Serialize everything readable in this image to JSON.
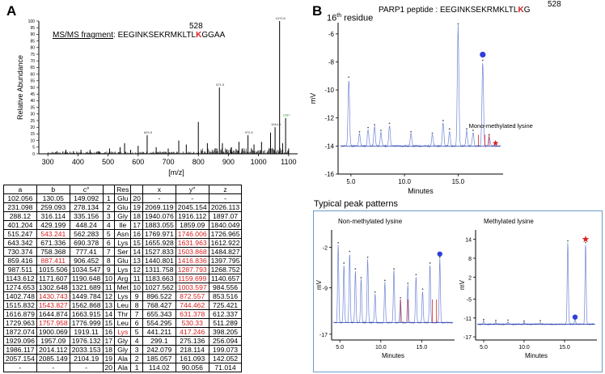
{
  "panels": {
    "a": "A",
    "b": "B"
  },
  "spectrum": {
    "fragment_label": "MS/MS fragment",
    "fragment_pre": ": EEGINKSEKRMKLTL",
    "fragment_k": "K",
    "fragment_post": "GGAA",
    "site_number": "528",
    "ylabel": "Relative Abundance",
    "xlabel": "[m/z]",
    "xticks": [
      "300",
      "400",
      "500",
      "600",
      "700",
      "800",
      "900",
      "1000",
      "1100"
    ],
    "yticks": [
      "0",
      "5",
      "10",
      "15",
      "20",
      "25",
      "30",
      "35",
      "40",
      "45",
      "50",
      "55",
      "60",
      "65",
      "70",
      "75",
      "80",
      "85",
      "90",
      "95",
      "100"
    ],
    "xrange": [
      270,
      1130
    ],
    "peaks": [
      [
        330,
        2
      ],
      [
        360,
        3
      ],
      [
        385,
        2
      ],
      [
        410,
        3
      ],
      [
        440,
        3
      ],
      [
        470,
        2
      ],
      [
        505,
        4
      ],
      [
        540,
        5
      ],
      [
        555,
        8
      ],
      [
        575,
        3
      ],
      [
        600,
        6
      ],
      [
        630,
        14
      ],
      [
        660,
        5
      ],
      [
        700,
        4
      ],
      [
        735,
        10
      ],
      [
        760,
        7
      ],
      [
        800,
        24
      ],
      [
        830,
        8
      ],
      [
        870,
        50
      ],
      [
        880,
        8
      ],
      [
        910,
        5
      ],
      [
        935,
        9
      ],
      [
        965,
        14
      ],
      [
        985,
        7
      ],
      [
        1010,
        9
      ],
      [
        1040,
        16
      ],
      [
        1055,
        20
      ],
      [
        1070,
        100
      ],
      [
        1080,
        8
      ],
      [
        1090,
        27
      ],
      [
        1100,
        4
      ]
    ],
    "peak_labels": [
      {
        "mz": 1070,
        "text": "1070.6",
        "color": "#333333"
      },
      {
        "mz": 870,
        "text": "871.5",
        "color": "#333333"
      },
      {
        "mz": 1090,
        "text": "1087",
        "color": "#2e9a2e"
      },
      {
        "mz": 630,
        "text": "629.5",
        "color": "#333333"
      },
      {
        "mz": 1055,
        "text": "1044.6",
        "color": "#333333"
      },
      {
        "mz": 965,
        "text": "972.5",
        "color": "#333333"
      }
    ]
  },
  "table": {
    "headers": [
      "a",
      "b",
      "c°",
      "",
      "Res",
      "",
      "x",
      "y°",
      "z"
    ],
    "rows": [
      [
        "102.056",
        "130.05",
        "149.092",
        "1",
        "Glu",
        "20",
        "-",
        "-",
        "-"
      ],
      [
        "231.098",
        "259.093",
        "278.134",
        "2",
        "Glu",
        "19",
        "2069.119",
        "2045.154",
        "2026.113"
      ],
      [
        "288.12",
        "316.114",
        "335.156",
        "3",
        "Gly",
        "18",
        "1940.076",
        "1916.112",
        "1897.07"
      ],
      [
        "401.204",
        "429.199",
        "448.24",
        "4",
        "Ile",
        "17",
        "1883.055",
        "1859.09",
        "1840.049"
      ],
      [
        "515.247",
        "543.241",
        "562.283",
        "5",
        "Asn",
        "16",
        "1769.971",
        "1746.006",
        "1726.965"
      ],
      [
        "643.342",
        "671.336",
        "690.378",
        "6",
        "Lys",
        "15",
        "1655.928",
        "1631.963",
        "1612.922"
      ],
      [
        "730.374",
        "758.368",
        "777.41",
        "7",
        "Ser",
        "14",
        "1527.833",
        "1503.868",
        "1484.827"
      ],
      [
        "859.416",
        "887.411",
        "906.452",
        "8",
        "Glu",
        "13",
        "1440.801",
        "1416.836",
        "1397.795"
      ],
      [
        "987.511",
        "1015.506",
        "1034.547",
        "9",
        "Lys",
        "12",
        "1311.758",
        "1287.793",
        "1268.752"
      ],
      [
        "1143.612",
        "1171.607",
        "1190.648",
        "10",
        "Arg",
        "11",
        "1183.663",
        "1159.699",
        "1140.657"
      ],
      [
        "1274.653",
        "1302.648",
        "1321.689",
        "11",
        "Met",
        "10",
        "1027.562",
        "1003.597",
        "984.556"
      ],
      [
        "1402.748",
        "1430.743",
        "1449.784",
        "12",
        "Lys",
        "9",
        "896.522",
        "872.557",
        "853.516"
      ],
      [
        "1515.832",
        "1543.827",
        "1562.868",
        "13",
        "Leu",
        "8",
        "768.427",
        "744.462",
        "725.421"
      ],
      [
        "1616.879",
        "1644.874",
        "1663.915",
        "14",
        "Thr",
        "7",
        "655.343",
        "631.378",
        "612.337"
      ],
      [
        "1729.963",
        "1757.958",
        "1776.999",
        "15",
        "Leu",
        "6",
        "554.295",
        "530.33",
        "511.289"
      ],
      [
        "1872.074",
        "1900.069",
        "1919.11",
        "16",
        "Lys",
        "5",
        "441.211",
        "417.246",
        "398.205"
      ],
      [
        "1929.096",
        "1957.09",
        "1976.132",
        "17",
        "Gly",
        "4",
        "299.1",
        "275.136",
        "256.094"
      ],
      [
        "1986.117",
        "2014.112",
        "2033.153",
        "18",
        "Gly",
        "3",
        "242.079",
        "218.114",
        "199.073"
      ],
      [
        "2057.154",
        "2085.149",
        "2104.19",
        "19",
        "Ala",
        "2",
        "185.057",
        "161.093",
        "142.052"
      ],
      [
        "-",
        "-",
        "-",
        "20",
        "Ala",
        "1",
        "114.02",
        "90.056",
        "71.014"
      ]
    ],
    "red_cells": [
      "4-1",
      "4-7",
      "5-7",
      "6-7",
      "7-1",
      "7-7",
      "8-7",
      "9-7",
      "10-7",
      "11-1",
      "11-7",
      "12-1",
      "12-7",
      "13-7",
      "14-1",
      "14-7",
      "15-4",
      "15-7"
    ]
  },
  "chromatogram": {
    "title_pre": "PARP1 peptide : EEGINKSEKRMKLTL",
    "title_k": "K",
    "title_post": "G",
    "site_number": "528",
    "residue_label_pre": "16",
    "residue_label_sup": "th",
    "residue_label_post": " residue",
    "ylabel": "mV",
    "xlabel": "Minutes",
    "xticks": [
      "5.0",
      "10.0",
      "15.0"
    ],
    "yticks": [
      "-6",
      "-8",
      "-10",
      "-12",
      "-14",
      "-16"
    ],
    "xrange": [
      3.8,
      19.2
    ],
    "yrange": [
      -16,
      -5.2
    ],
    "baseline": -14,
    "peaks": [
      [
        4.8,
        -9.2
      ],
      [
        5.8,
        -13.1
      ],
      [
        6.6,
        -12.8
      ],
      [
        7.2,
        -12.6
      ],
      [
        7.8,
        -13.0
      ],
      [
        8.6,
        -12.5
      ],
      [
        10.6,
        -13.1
      ],
      [
        12.6,
        -13.2
      ],
      [
        13.6,
        -12.3
      ],
      [
        14.2,
        -12.9
      ],
      [
        15.0,
        -5.4
      ],
      [
        15.8,
        -12.9
      ],
      [
        16.4,
        -13.0
      ],
      [
        17.3,
        -8.0
      ],
      [
        17.9,
        -13.3
      ]
    ],
    "annotation": "Mono-methylated lysine",
    "marker_colors": {
      "circle": "#2f3fd9",
      "star": "#e01e1e"
    }
  },
  "patterns": {
    "title": "Typical peak patterns",
    "non_methyl": {
      "title": "Non-methylated lysine",
      "ylabel": "mV",
      "xlabel": "Minutes",
      "xticks": [
        "5.0",
        "10.0",
        "15.0"
      ],
      "yticks": [
        "-2",
        "-9",
        "-17"
      ],
      "xrange": [
        4.0,
        19.0
      ],
      "yrange": [
        -18,
        1
      ],
      "baseline": -15,
      "peaks": [
        [
          4.8,
          -1.5
        ],
        [
          5.5,
          -5
        ],
        [
          6.2,
          -3
        ],
        [
          6.9,
          -6
        ],
        [
          7.6,
          -7.5
        ],
        [
          8.4,
          -4
        ],
        [
          9.3,
          -10
        ],
        [
          10.5,
          -8
        ],
        [
          11.6,
          -6
        ],
        [
          12.4,
          -11
        ],
        [
          13.3,
          -8.5
        ],
        [
          14.3,
          -7
        ],
        [
          15.1,
          -9.5
        ],
        [
          16.0,
          -5
        ],
        [
          17.2,
          -4
        ]
      ]
    },
    "methyl": {
      "title": "Methylated lysine",
      "ylabel": "mV",
      "xlabel": "Minutes",
      "xticks": [
        "5.0",
        "10.0",
        "15.0"
      ],
      "yticks": [
        "14",
        "8",
        "2",
        "-5",
        "-11",
        "-17"
      ],
      "xrange": [
        4.0,
        19.0
      ],
      "yrange": [
        -18,
        17
      ],
      "baseline": -13,
      "peaks": [
        [
          5.0,
          -12
        ],
        [
          6.5,
          -12.3
        ],
        [
          8.0,
          -12.2
        ],
        [
          10.0,
          -12.5
        ],
        [
          12.0,
          -12.4
        ],
        [
          15.4,
          13
        ],
        [
          16.3,
          -11.5
        ],
        [
          17.6,
          12.5
        ]
      ]
    }
  }
}
